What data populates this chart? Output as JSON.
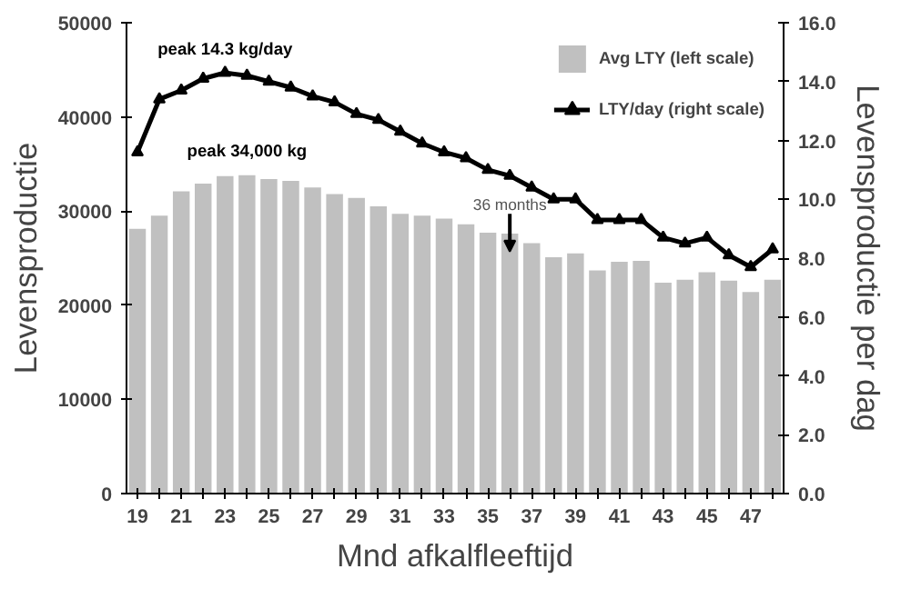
{
  "chart_data": {
    "type": "bar",
    "xlabel": "Mnd afkalfleeftijd",
    "ylabel": "Levensproductie",
    "y2label": "Levensproductie per dag",
    "x": [
      19,
      20,
      21,
      22,
      23,
      24,
      25,
      26,
      27,
      28,
      29,
      30,
      31,
      32,
      33,
      34,
      35,
      36,
      37,
      38,
      39,
      40,
      41,
      42,
      43,
      44,
      45,
      46,
      47,
      48
    ],
    "xlim": [
      18.5,
      48.5
    ],
    "xticks": [
      19,
      {
        "value": 20,
        "label": null
      },
      21,
      {
        "value": 22,
        "label": null
      },
      23,
      {
        "value": 24,
        "label": null
      },
      25,
      {
        "value": 26,
        "label": null
      },
      27,
      {
        "value": 28,
        "label": null
      },
      29,
      {
        "value": 30,
        "label": null
      },
      31,
      {
        "value": 32,
        "label": null
      },
      33,
      {
        "value": 34,
        "label": null
      },
      35,
      {
        "value": 36,
        "label": null
      },
      37,
      {
        "value": 38,
        "label": null
      },
      39,
      {
        "value": 40,
        "label": null
      },
      41,
      {
        "value": 42,
        "label": null
      },
      43,
      {
        "value": 44,
        "label": null
      },
      45,
      {
        "value": 46,
        "label": null
      },
      47,
      {
        "value": 48,
        "label": null
      }
    ],
    "ylim": [
      0,
      50000
    ],
    "yticks": [
      0,
      10000,
      20000,
      30000,
      40000,
      50000
    ],
    "y2lim": [
      0,
      16
    ],
    "y2ticks": [
      {
        "value": 0,
        "label": "0.0"
      },
      {
        "value": 2,
        "label": "2.0"
      },
      {
        "value": 4,
        "label": "4.0"
      },
      {
        "value": 6,
        "label": "6.0"
      },
      {
        "value": 8,
        "label": "8.0"
      },
      {
        "value": 10,
        "label": "10.0"
      },
      {
        "value": 12,
        "label": "12.0"
      },
      {
        "value": 14,
        "label": "14.0"
      },
      {
        "value": 16,
        "label": "16.0"
      }
    ],
    "series": [
      {
        "name": "Avg LTY (left scale)",
        "color": "#c0c0c0",
        "values": [
          28200,
          29600,
          32200,
          33000,
          33800,
          33900,
          33500,
          33300,
          32600,
          31900,
          31500,
          30600,
          29800,
          29600,
          29300,
          28700,
          27800,
          27700,
          26700,
          25200,
          25600,
          23800,
          24700,
          24800,
          22500,
          22800,
          23600,
          22700,
          21500,
          22800
        ]
      },
      {
        "name": "LTY/day (right scale)",
        "type": "line",
        "axis": "y2",
        "color": "#000000",
        "marker": "triangle",
        "values": [
          11.6,
          13.4,
          13.7,
          14.1,
          14.3,
          14.2,
          14.0,
          13.8,
          13.5,
          13.3,
          12.9,
          12.7,
          12.3,
          11.9,
          11.6,
          11.4,
          11.0,
          10.8,
          10.4,
          10.0,
          10.0,
          9.3,
          9.3,
          9.3,
          8.7,
          8.5,
          8.7,
          8.1,
          7.7,
          8.3
        ]
      }
    ],
    "annotations": [
      {
        "text": "peak 14.3 kg/day",
        "x": 23,
        "y": 44700
      },
      {
        "text": "peak 34,000 kg",
        "x": 24,
        "y": 33900
      },
      {
        "text": "36 months",
        "x": 36,
        "y": 27700
      }
    ],
    "legend": "top right",
    "grid": false
  }
}
